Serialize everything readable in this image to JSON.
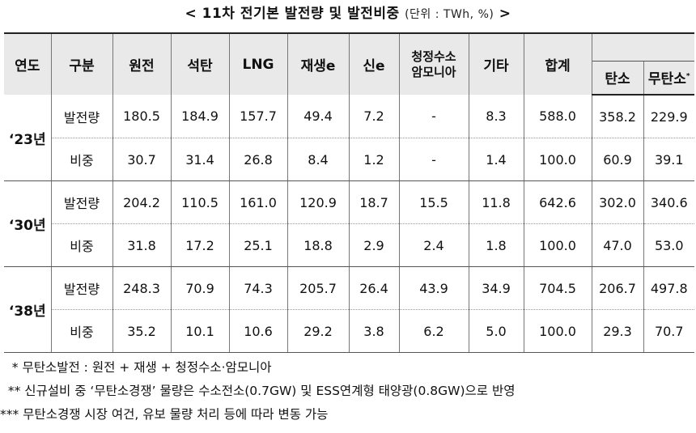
{
  "title": {
    "main": "< 11차 전기본 발전량 및 발전비중",
    "unit": "(단위 : TWh, %)",
    "close": ">"
  },
  "headers": {
    "year": "연도",
    "category": "구분",
    "nuclear": "원전",
    "coal": "석탄",
    "lng": "LNG",
    "renewable": "재생e",
    "new": "신e",
    "clean_h2_line1": "청정수소",
    "clean_h2_line2": "암모니아",
    "other": "기타",
    "total": "합계",
    "carbon": "탄소",
    "carbon_free": "무탄소",
    "carbon_free_mark": "*"
  },
  "rows": [
    {
      "year": "‘23년",
      "amount": {
        "label": "발전량",
        "cells": [
          "180.5",
          "184.9",
          "157.7",
          "49.4",
          "7.2",
          "-",
          "8.3",
          "588.0",
          "358.2",
          "229.9"
        ]
      },
      "ratio": {
        "label": "비중",
        "cells": [
          "30.7",
          "31.4",
          "26.8",
          "8.4",
          "1.2",
          "-",
          "1.4",
          "100.0",
          "60.9",
          "39.1"
        ]
      }
    },
    {
      "year": "‘30년",
      "amount": {
        "label": "발전량",
        "cells": [
          "204.2",
          "110.5",
          "161.0",
          "120.9",
          "18.7",
          "15.5",
          "11.8",
          "642.6",
          "302.0",
          "340.6"
        ]
      },
      "ratio": {
        "label": "비중",
        "cells": [
          "31.8",
          "17.2",
          "25.1",
          "18.8",
          "2.9",
          "2.4",
          "1.8",
          "100.0",
          "47.0",
          "53.0"
        ]
      }
    },
    {
      "year": "‘38년",
      "amount": {
        "label": "발전량",
        "cells": [
          "248.3",
          "70.9",
          "74.3",
          "205.7",
          "26.4",
          "43.9",
          "34.9",
          "704.5",
          "206.7",
          "497.8"
        ]
      },
      "ratio": {
        "label": "비중",
        "cells": [
          "35.2",
          "10.1",
          "10.6",
          "29.2",
          "3.8",
          "6.2",
          "5.0",
          "100.0",
          "29.3",
          "70.7"
        ]
      }
    }
  ],
  "notes": [
    "   * 무탄소발전 : 원전 + 재생 + 청정수소·암모니아",
    "  ** 신규설비 중 ‘무탄소경쟁’ 물량은 수소전소(0.7GW) 및 ESS연계형 태양광(0.8GW)으로 반영",
    "*** 무탄소경쟁 시장 여건, 유보 물량 처리 등에 따라 변동 가능"
  ]
}
